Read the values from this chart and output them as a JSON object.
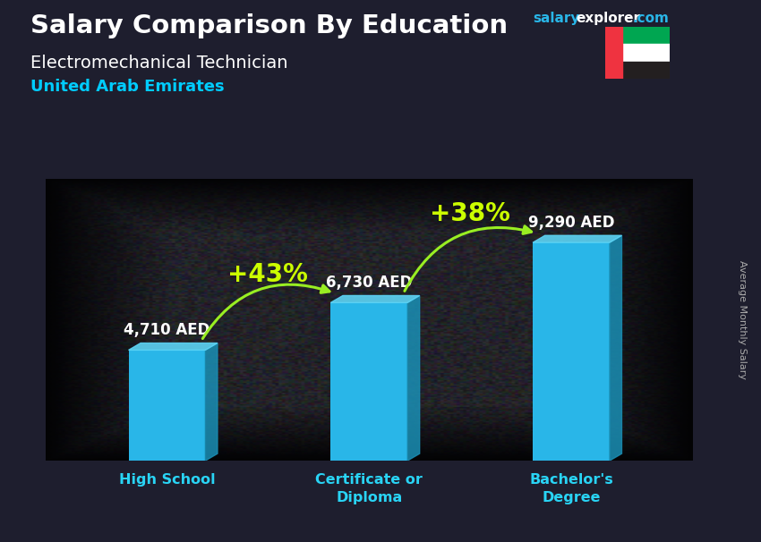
{
  "title1": "Salary Comparison By Education",
  "title2": "Electromechanical Technician",
  "title3": "United Arab Emirates",
  "categories": [
    "High School",
    "Certificate or\nDiploma",
    "Bachelor's\nDegree"
  ],
  "values": [
    4710,
    6730,
    9290
  ],
  "value_labels": [
    "4,710 AED",
    "6,730 AED",
    "9,290 AED"
  ],
  "bar_color": "#29b6e8",
  "bar_color_dark": "#1a8fb5",
  "pct_labels": [
    "+43%",
    "+38%"
  ],
  "bg_color": "#2a2a3a",
  "title1_color": "#ffffff",
  "title2_color": "#ffffff",
  "title3_color": "#00ccff",
  "value_color": "#ffffff",
  "pct_color": "#ccff00",
  "arrow_color": "#99ee22",
  "xlabel_color": "#29d4f5",
  "brand_salary_color": "#29b6e8",
  "brand_explorer_color": "#ffffff",
  "brand_com_color": "#29b6e8",
  "ylabel_text": "Average Monthly Salary",
  "ylim": [
    0,
    12000
  ],
  "bar_width": 0.38
}
